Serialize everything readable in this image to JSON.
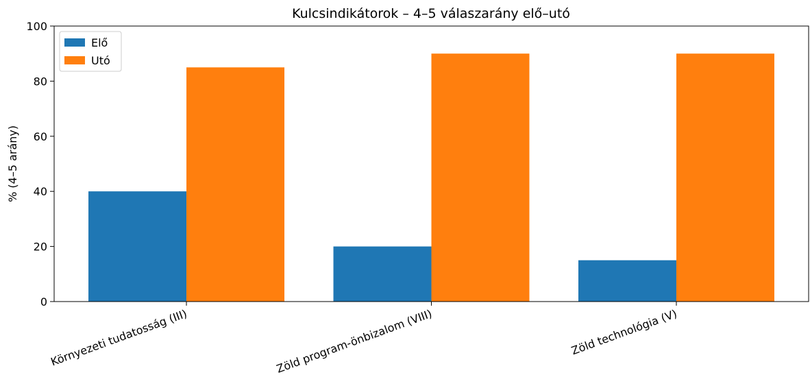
{
  "chart_data": {
    "type": "bar",
    "title": "Kulcsindikátorok – 4–5 válaszarány elő–utó",
    "ylabel": "% (4–5 arány)",
    "categories": [
      "Környezeti tudatosság (III)",
      "Zöld program-önbizalom (VIII)",
      "Zöld technológia (V)"
    ],
    "series": [
      {
        "name": "Elő",
        "color": "#1f77b4",
        "values": [
          40,
          20,
          15
        ]
      },
      {
        "name": "Utó",
        "color": "#ff7f0e",
        "values": [
          85,
          90,
          90
        ]
      }
    ],
    "ylim": [
      0,
      100
    ],
    "yticks": [
      0,
      20,
      40,
      60,
      80,
      100
    ],
    "legend": "upper left"
  }
}
